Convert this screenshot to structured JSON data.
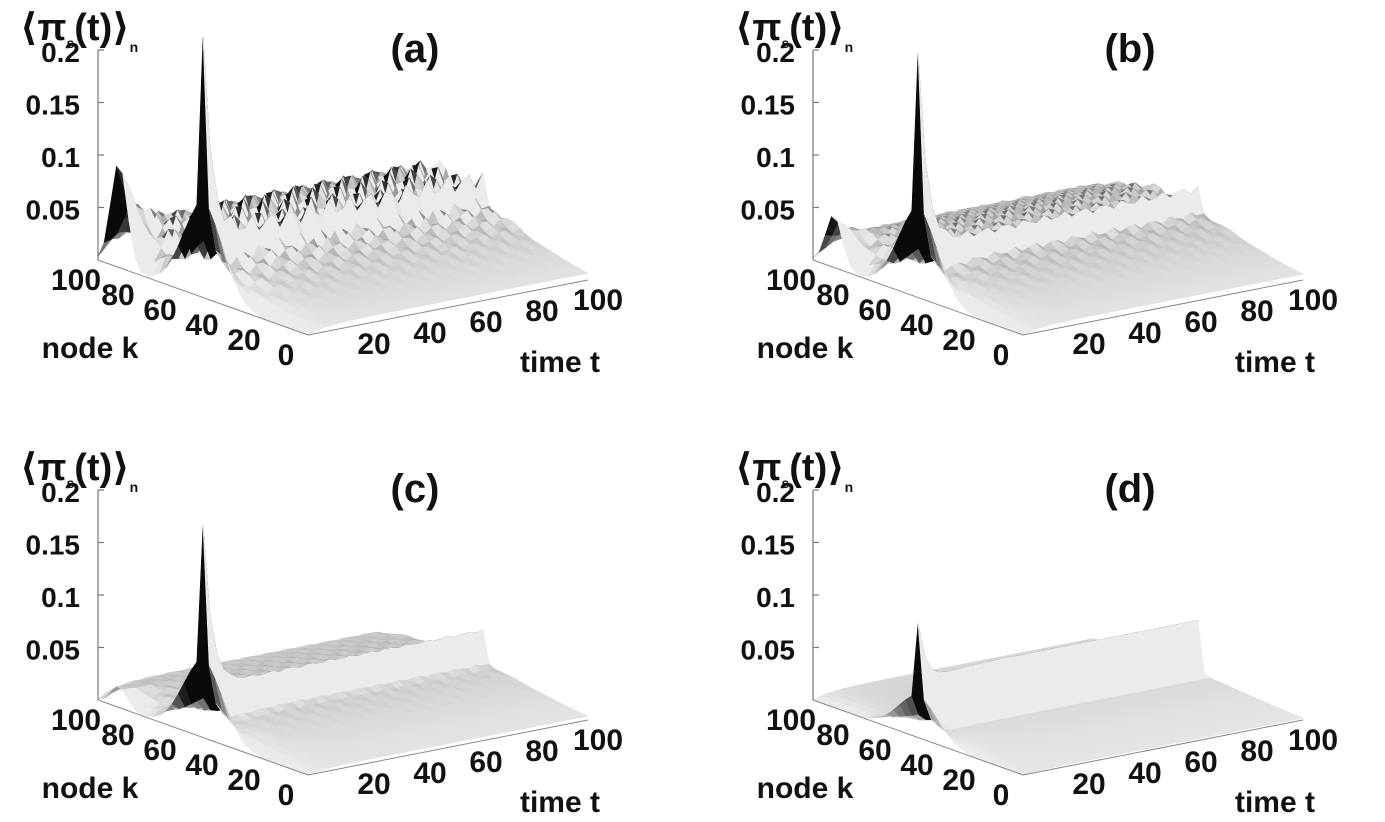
{
  "chart_data": [
    {
      "panel": "(a)",
      "type": "surface3d",
      "zlabel": {
        "main": "π",
        "sub": "s",
        "paren": "(t)",
        "subscript": "n"
      },
      "xlabel": "time t",
      "ylabel": "node k",
      "zticks": [
        "0.2",
        "0.15",
        "0.1",
        "0.05"
      ],
      "xticks": [
        "20",
        "40",
        "60",
        "80",
        "100"
      ],
      "yticks": [
        "100",
        "80",
        "60",
        "40",
        "20",
        "0"
      ],
      "zlim": [
        0,
        0.2
      ],
      "xlim": [
        0,
        100
      ],
      "ylim": [
        0,
        100
      ],
      "features": {
        "initial_spike_node": 50,
        "initial_spike_peak": 0.16,
        "early_ridge_node": 90,
        "early_ridge_peak": 0.1,
        "plateau_level": 0.035,
        "plateau_fluctuation": 0.03,
        "trailing_ridge_level": 0.02
      }
    },
    {
      "panel": "(b)",
      "type": "surface3d",
      "zlabel": {
        "main": "π",
        "sub": "s",
        "paren": "(t)",
        "subscript": "n"
      },
      "xlabel": "time t",
      "ylabel": "node k",
      "zticks": [
        "0.2",
        "0.15",
        "0.1",
        "0.05"
      ],
      "xticks": [
        "20",
        "40",
        "60",
        "80",
        "100"
      ],
      "yticks": [
        "100",
        "80",
        "60",
        "40",
        "20",
        "0"
      ],
      "zlim": [
        0,
        0.2
      ],
      "xlim": [
        0,
        100
      ],
      "ylim": [
        0,
        100
      ],
      "features": {
        "initial_spike_node": 50,
        "initial_spike_peak": 0.15,
        "early_ridge_node": 90,
        "early_ridge_peak": 0.05,
        "plateau_level": 0.03,
        "plateau_fluctuation": 0.012,
        "trailing_ridge_level": 0.02
      }
    },
    {
      "panel": "(c)",
      "type": "surface3d",
      "zlabel": {
        "main": "π",
        "sub": "s",
        "paren": "(t)",
        "subscript": "n"
      },
      "xlabel": "time t",
      "ylabel": "node k",
      "zticks": [
        "0.2",
        "0.15",
        "0.1",
        "0.05"
      ],
      "xticks": [
        "20",
        "40",
        "60",
        "80",
        "100"
      ],
      "yticks": [
        "100",
        "80",
        "60",
        "40",
        "20",
        "0"
      ],
      "zlim": [
        0,
        0.2
      ],
      "xlim": [
        0,
        100
      ],
      "ylim": [
        0,
        100
      ],
      "features": {
        "initial_spike_node": 50,
        "initial_spike_peak": 0.13,
        "early_ridge_node": 90,
        "early_ridge_peak": 0.02,
        "plateau_level": 0.02,
        "plateau_fluctuation": 0.004,
        "trailing_ridge_level": 0.03
      }
    },
    {
      "panel": "(d)",
      "type": "surface3d",
      "zlabel": {
        "main": "π",
        "sub": "s",
        "paren": "(t)",
        "subscript": "n"
      },
      "xlabel": "time t",
      "ylabel": "node k",
      "zticks": [
        "0.2",
        "0.15",
        "0.1",
        "0.05"
      ],
      "xticks": [
        "20",
        "40",
        "60",
        "80",
        "100"
      ],
      "yticks": [
        "100",
        "80",
        "60",
        "40",
        "20",
        "0"
      ],
      "zlim": [
        0,
        0.2
      ],
      "xlim": [
        0,
        100
      ],
      "ylim": [
        0,
        100
      ],
      "features": {
        "initial_spike_node": 50,
        "initial_spike_peak": 0.07,
        "early_ridge_node": 90,
        "early_ridge_peak": 0.0,
        "plateau_level": 0.01,
        "plateau_fluctuation": 0.0,
        "trailing_ridge_level": 0.05
      }
    }
  ]
}
